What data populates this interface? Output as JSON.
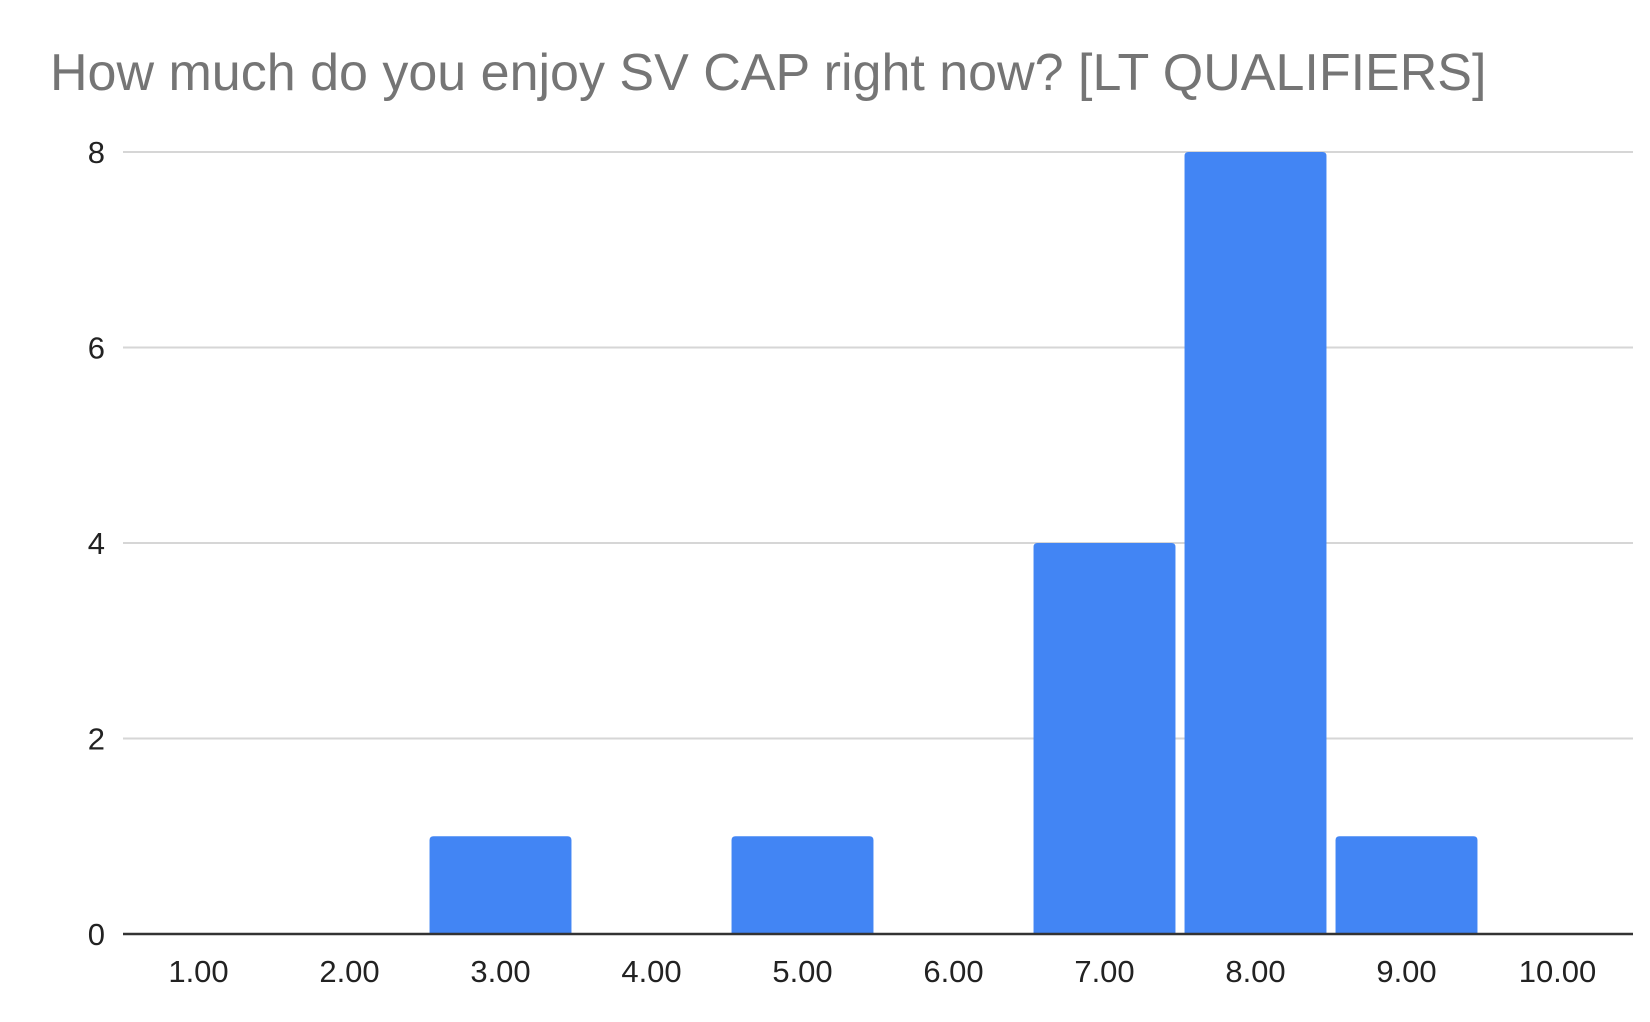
{
  "chart_data": {
    "type": "bar",
    "title": "How much do you enjoy SV CAP right now? [LT QUALIFIERS]",
    "xlabel": "",
    "ylabel": "",
    "categories": [
      "1.00",
      "2.00",
      "3.00",
      "4.00",
      "5.00",
      "6.00",
      "7.00",
      "8.00",
      "9.00",
      "10.00"
    ],
    "values": [
      0,
      0,
      1,
      0,
      1,
      0,
      4,
      8,
      1,
      0
    ],
    "ylim": [
      0,
      8
    ],
    "yticks": [
      "0",
      "2",
      "4",
      "6",
      "8"
    ],
    "grid": true,
    "legend": "none",
    "bar_color": "#4285F4"
  }
}
